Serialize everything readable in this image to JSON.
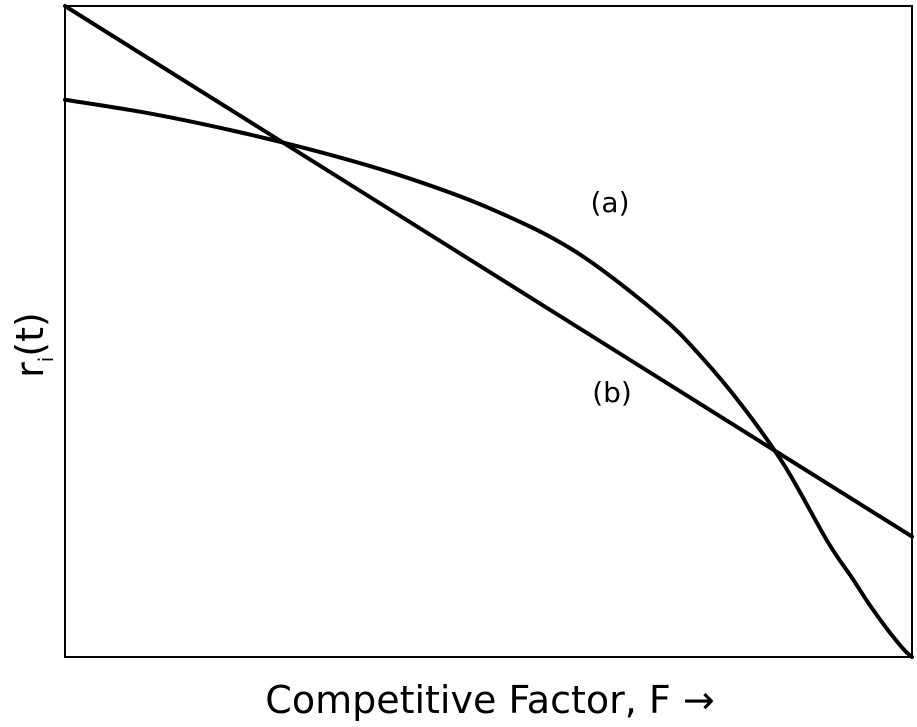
{
  "chart_data": {
    "type": "line",
    "xlabel": "Competitive Factor, F →",
    "ylabel_main": "r",
    "ylabel_sub": "i",
    "ylabel_tail": "(t)",
    "grid": false,
    "ticks": false,
    "xlim": [
      0,
      1
    ],
    "ylim": [
      0,
      1
    ],
    "series": [
      {
        "name": "(a)",
        "color": "#000000",
        "x": [
          0,
          0.1,
          0.2,
          0.3,
          0.4,
          0.5,
          0.6,
          0.7,
          0.75,
          0.8,
          0.85,
          0.9,
          0.93,
          0.95,
          0.97,
          0.99,
          1.0
        ],
        "y": [
          0.856,
          0.835,
          0.808,
          0.776,
          0.738,
          0.69,
          0.625,
          0.527,
          0.463,
          0.385,
          0.293,
          0.178,
          0.12,
          0.08,
          0.044,
          0.012,
          0.0
        ]
      },
      {
        "name": "(b)",
        "color": "#000000",
        "x": [
          0,
          1
        ],
        "y": [
          1.0,
          0.185
        ]
      }
    ]
  }
}
